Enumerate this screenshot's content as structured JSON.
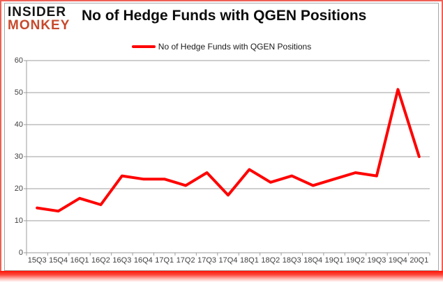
{
  "logo": {
    "line1": "INSIDER",
    "line2": "MONKEY"
  },
  "header": {
    "title": "No of Hedge Funds with QGEN Positions"
  },
  "legend": {
    "label": "No of Hedge Funds with QGEN Positions"
  },
  "colors": {
    "series": "#ff0000",
    "logo_primary": "#141414",
    "logo_accent": "#c7492b",
    "grid": "#9d9d9d",
    "axis": "#9d9d9d",
    "axis_text": "#3f3f3f",
    "frame_border": "#ef5f55",
    "bottom_glow": "#fb1407"
  },
  "chart_data": {
    "type": "line",
    "title": "No of Hedge Funds with QGEN Positions",
    "categories": [
      "15Q3",
      "15Q4",
      "16Q1",
      "16Q2",
      "16Q3",
      "16Q4",
      "17Q1",
      "17Q2",
      "17Q3",
      "17Q4",
      "18Q1",
      "18Q2",
      "18Q3",
      "18Q4",
      "19Q1",
      "19Q2",
      "19Q3",
      "19Q4",
      "20Q1"
    ],
    "series": [
      {
        "name": "No of Hedge Funds with QGEN Positions",
        "values": [
          14,
          13,
          17,
          15,
          24,
          23,
          23,
          21,
          25,
          18,
          26,
          22,
          24,
          21,
          23,
          25,
          24,
          51,
          30
        ]
      }
    ],
    "ylim": [
      0,
      60
    ],
    "yticks": [
      0,
      10,
      20,
      30,
      40,
      50,
      60
    ],
    "xlabel": "",
    "ylabel": "",
    "grid": "horizontal",
    "legend_position": "top-center"
  }
}
